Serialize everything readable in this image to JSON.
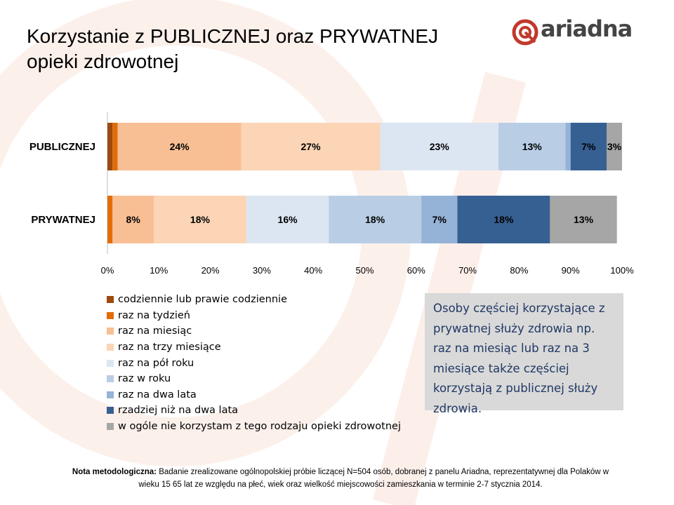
{
  "title": "Korzystanie z PUBLICZNEJ oraz PRYWATNEJ opieki zdrowotnej",
  "logo": {
    "text": "ariadna",
    "accent_color": "#c0392b"
  },
  "colors": {
    "series": [
      "#9c4a10",
      "#e36c0a",
      "#f9bf94",
      "#fbd5b5",
      "#dce6f2",
      "#b9cde5",
      "#95b3d7",
      "#366092",
      "#a6a6a6"
    ],
    "callout_text": "#1f3864",
    "callout_bg": "#d9d9d9"
  },
  "chart_data": {
    "type": "bar",
    "orientation": "horizontal",
    "stacked": true,
    "categories": [
      "PUBLICZNEJ",
      "PRYWATNEJ"
    ],
    "series": [
      {
        "name": "codziennie lub prawie codziennie",
        "values": [
          1,
          0
        ],
        "labels": [
          "",
          ""
        ]
      },
      {
        "name": "raz na tydzień",
        "values": [
          1,
          1
        ],
        "labels": [
          "1%",
          "1%"
        ]
      },
      {
        "name": "raz na miesiąc",
        "values": [
          24,
          8
        ],
        "labels": [
          "24%",
          "8%"
        ]
      },
      {
        "name": "raz na trzy miesiące",
        "values": [
          27,
          18
        ],
        "labels": [
          "27%",
          "18%"
        ]
      },
      {
        "name": "raz na pół roku",
        "values": [
          23,
          16
        ],
        "labels": [
          "23%",
          "16%"
        ]
      },
      {
        "name": "raz w roku",
        "values": [
          13,
          18
        ],
        "labels": [
          "13%",
          "18%"
        ]
      },
      {
        "name": "raz na dwa lata",
        "values": [
          1,
          7
        ],
        "labels": [
          "1%",
          "7%"
        ]
      },
      {
        "name": "rzadziej niż na dwa lata",
        "values": [
          7,
          18
        ],
        "labels": [
          "7%",
          "18%"
        ]
      },
      {
        "name": "w ogóle nie korzystam z tego rodzaju opieki zdrowotnej",
        "values": [
          3,
          13
        ],
        "labels": [
          "3%",
          "13%"
        ]
      }
    ],
    "xlim": [
      0,
      100
    ],
    "x_ticks": [
      "0%",
      "10%",
      "20%",
      "30%",
      "40%",
      "50%",
      "60%",
      "70%",
      "80%",
      "90%",
      "100%"
    ],
    "grid": false,
    "legend_position": "bottom-left"
  },
  "callout": {
    "text": "Osoby częściej korzystające z prywatnej służy zdrowia np. raz na miesiąc lub raz na 3 miesiące także częściej korzystają z publicznej służy zdrowia."
  },
  "note": {
    "label": "Nota metodologiczna:",
    "text": " Badanie zrealizowane ogólnopolskiej próbie liczącej N=504 osób, dobranej z panelu Ariadna, reprezentatywnej dla Polaków w wieku 15 65 lat ze względu na płeć, wiek oraz wielkość miejscowości zamieszkania w terminie 2-7 stycznia 2014."
  }
}
